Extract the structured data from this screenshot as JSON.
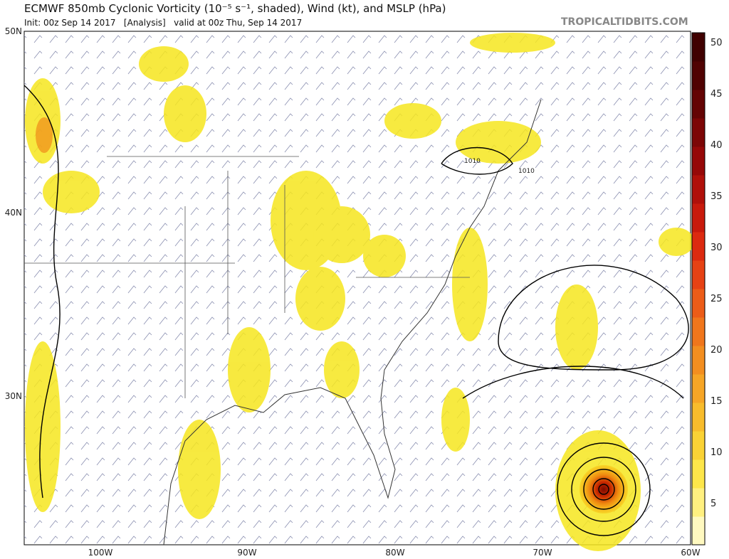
{
  "header": {
    "title": "ECMWF 850mb Cyclonic Vorticity (10⁻⁵ s⁻¹, shaded), Wind (kt), and MSLP (hPa)",
    "init": "Init: 00z Sep 14 2017   [Analysis]   valid at 00z Thu, Sep 14 2017",
    "site": "TROPICALTIDBITS.COM"
  },
  "map": {
    "lat_labels": [
      "50N",
      "40N",
      "30N"
    ],
    "lon_labels": [
      "100W",
      "90W",
      "80W",
      "70W",
      "60W"
    ],
    "contour_labels": [
      "1010",
      "1010"
    ]
  },
  "colorbar": {
    "labels": [
      "5",
      "10",
      "15",
      "20",
      "25",
      "30",
      "35",
      "40",
      "45",
      "50"
    ]
  }
}
